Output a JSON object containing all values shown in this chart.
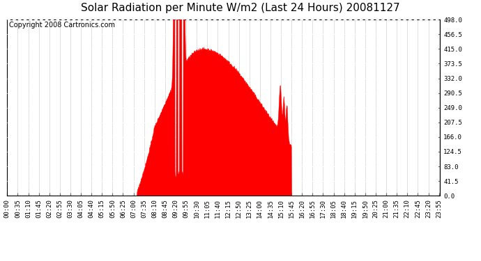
{
  "title": "Solar Radiation per Minute W/m2 (Last 24 Hours) 20081127",
  "copyright": "Copyright 2008 Cartronics.com",
  "y_ticks": [
    0.0,
    41.5,
    83.0,
    124.5,
    166.0,
    207.5,
    249.0,
    290.5,
    332.0,
    373.5,
    415.0,
    456.5,
    498.0
  ],
  "ylim": [
    0.0,
    498.0
  ],
  "xlim": [
    0,
    1439
  ],
  "fill_color": "#FF0000",
  "line_color": "#FF0000",
  "dashed_line_color": "#FF0000",
  "background_color": "#FFFFFF",
  "grid_color_h": "#C8C8C8",
  "grid_color_v": "#C8C8C8",
  "title_fontsize": 11,
  "copyright_fontsize": 7,
  "tick_fontsize": 6.5,
  "n_minutes": 1440,
  "tick_every": 35
}
